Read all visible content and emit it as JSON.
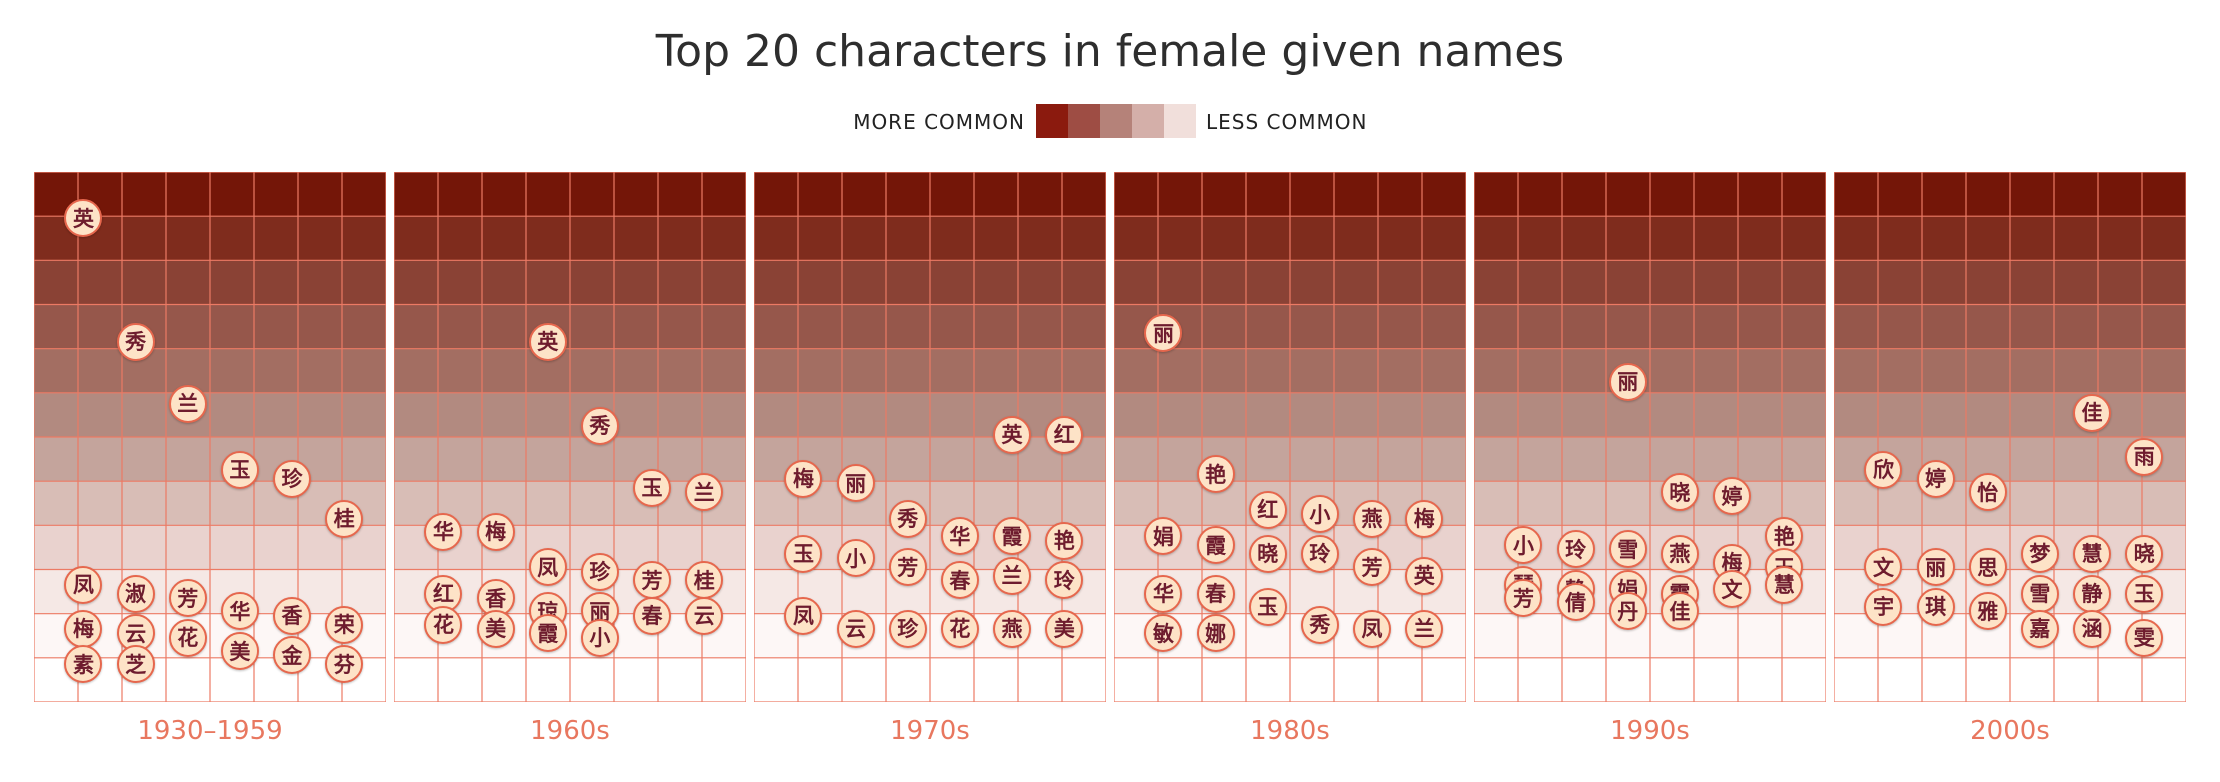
{
  "chart_data": {
    "type": "scatter",
    "title": "Top 20 characters in female given names",
    "legend": {
      "more_label": "MORE COMMON",
      "less_label": "LESS COMMON",
      "colors": [
        "#8b1a0e",
        "#9e4d44",
        "#b58279",
        "#d4afa9",
        "#f1dfdb"
      ],
      "placement": "top-center"
    },
    "band_colors": [
      "#741608",
      "#7f2c1d",
      "#8a4235",
      "#96574b",
      "#a36e62",
      "#b28a80",
      "#c4a49c",
      "#d8bdb6",
      "#e9d2ce",
      "#f5e8e5",
      "#fdf7f6",
      "#ffffff"
    ],
    "panels": [
      {
        "label": "1930–1959",
        "chars": [
          {
            "c": "英",
            "x": 1,
            "y": 1.0
          },
          {
            "c": "秀",
            "x": 2.2,
            "y": 3.8
          },
          {
            "c": "兰",
            "x": 3.4,
            "y": 5.2
          },
          {
            "c": "玉",
            "x": 4.6,
            "y": 6.7
          },
          {
            "c": "珍",
            "x": 5.8,
            "y": 6.9
          },
          {
            "c": "桂",
            "x": 7,
            "y": 7.8
          },
          {
            "c": "凤",
            "x": 1,
            "y": 9.3
          },
          {
            "c": "淑",
            "x": 2.2,
            "y": 9.5
          },
          {
            "c": "芳",
            "x": 3.4,
            "y": 9.6
          },
          {
            "c": "梅",
            "x": 1,
            "y": 10.3
          },
          {
            "c": "云",
            "x": 2.2,
            "y": 10.4
          },
          {
            "c": "花",
            "x": 3.4,
            "y": 10.5
          },
          {
            "c": "华",
            "x": 4.6,
            "y": 9.9
          },
          {
            "c": "香",
            "x": 5.8,
            "y": 10.0
          },
          {
            "c": "美",
            "x": 4.6,
            "y": 10.8
          },
          {
            "c": "金",
            "x": 5.8,
            "y": 10.9
          },
          {
            "c": "荣",
            "x": 7,
            "y": 10.2
          },
          {
            "c": "素",
            "x": 1,
            "y": 11.1
          },
          {
            "c": "芝",
            "x": 2.2,
            "y": 11.1
          },
          {
            "c": "芬",
            "x": 7,
            "y": 11.1
          }
        ]
      },
      {
        "label": "1960s",
        "chars": [
          {
            "c": "英",
            "x": 3.4,
            "y": 3.8
          },
          {
            "c": "秀",
            "x": 4.6,
            "y": 5.7
          },
          {
            "c": "玉",
            "x": 5.8,
            "y": 7.1
          },
          {
            "c": "兰",
            "x": 7,
            "y": 7.2
          },
          {
            "c": "华",
            "x": 1,
            "y": 8.1
          },
          {
            "c": "梅",
            "x": 2.2,
            "y": 8.1
          },
          {
            "c": "凤",
            "x": 3.4,
            "y": 8.9
          },
          {
            "c": "珍",
            "x": 4.6,
            "y": 9.0
          },
          {
            "c": "芳",
            "x": 5.8,
            "y": 9.2
          },
          {
            "c": "桂",
            "x": 7,
            "y": 9.2
          },
          {
            "c": "红",
            "x": 1,
            "y": 9.5
          },
          {
            "c": "香",
            "x": 2.2,
            "y": 9.6
          },
          {
            "c": "琼",
            "x": 3.4,
            "y": 9.9
          },
          {
            "c": "丽",
            "x": 4.6,
            "y": 9.9
          },
          {
            "c": "花",
            "x": 1,
            "y": 10.2
          },
          {
            "c": "美",
            "x": 2.2,
            "y": 10.3
          },
          {
            "c": "霞",
            "x": 3.4,
            "y": 10.4
          },
          {
            "c": "小",
            "x": 4.6,
            "y": 10.5
          },
          {
            "c": "春",
            "x": 5.8,
            "y": 10.0
          },
          {
            "c": "云",
            "x": 7,
            "y": 10.0
          }
        ]
      },
      {
        "label": "1970s",
        "chars": [
          {
            "c": "英",
            "x": 5.8,
            "y": 5.9
          },
          {
            "c": "红",
            "x": 7,
            "y": 5.9
          },
          {
            "c": "梅",
            "x": 1,
            "y": 6.9
          },
          {
            "c": "丽",
            "x": 2.2,
            "y": 7.0
          },
          {
            "c": "秀",
            "x": 3.4,
            "y": 7.8
          },
          {
            "c": "华",
            "x": 4.6,
            "y": 8.2
          },
          {
            "c": "霞",
            "x": 5.8,
            "y": 8.2
          },
          {
            "c": "艳",
            "x": 7,
            "y": 8.3
          },
          {
            "c": "玉",
            "x": 1,
            "y": 8.6
          },
          {
            "c": "小",
            "x": 2.2,
            "y": 8.7
          },
          {
            "c": "芳",
            "x": 3.4,
            "y": 8.9
          },
          {
            "c": "春",
            "x": 4.6,
            "y": 9.2
          },
          {
            "c": "兰",
            "x": 5.8,
            "y": 9.1
          },
          {
            "c": "玲",
            "x": 7,
            "y": 9.2
          },
          {
            "c": "凤",
            "x": 1,
            "y": 10.0
          },
          {
            "c": "云",
            "x": 2.2,
            "y": 10.3
          },
          {
            "c": "珍",
            "x": 3.4,
            "y": 10.3
          },
          {
            "c": "花",
            "x": 4.6,
            "y": 10.3
          },
          {
            "c": "燕",
            "x": 5.8,
            "y": 10.3
          },
          {
            "c": "美",
            "x": 7,
            "y": 10.3
          }
        ]
      },
      {
        "label": "1980s",
        "chars": [
          {
            "c": "丽",
            "x": 1,
            "y": 3.6
          },
          {
            "c": "艳",
            "x": 2.2,
            "y": 6.8
          },
          {
            "c": "红",
            "x": 3.4,
            "y": 7.6
          },
          {
            "c": "小",
            "x": 4.6,
            "y": 7.7
          },
          {
            "c": "燕",
            "x": 5.8,
            "y": 7.8
          },
          {
            "c": "梅",
            "x": 7,
            "y": 7.8
          },
          {
            "c": "娟",
            "x": 1,
            "y": 8.2
          },
          {
            "c": "霞",
            "x": 2.2,
            "y": 8.4
          },
          {
            "c": "晓",
            "x": 3.4,
            "y": 8.6
          },
          {
            "c": "玲",
            "x": 4.6,
            "y": 8.6
          },
          {
            "c": "芳",
            "x": 5.8,
            "y": 8.9
          },
          {
            "c": "英",
            "x": 7,
            "y": 9.1
          },
          {
            "c": "华",
            "x": 1,
            "y": 9.5
          },
          {
            "c": "春",
            "x": 2.2,
            "y": 9.5
          },
          {
            "c": "玉",
            "x": 3.4,
            "y": 9.8
          },
          {
            "c": "秀",
            "x": 4.6,
            "y": 10.2
          },
          {
            "c": "凤",
            "x": 5.8,
            "y": 10.3
          },
          {
            "c": "兰",
            "x": 7,
            "y": 10.3
          },
          {
            "c": "敏",
            "x": 1,
            "y": 10.4
          },
          {
            "c": "娜",
            "x": 2.2,
            "y": 10.4
          }
        ]
      },
      {
        "label": "1990s",
        "chars": [
          {
            "c": "丽",
            "x": 3.4,
            "y": 4.7
          },
          {
            "c": "晓",
            "x": 4.6,
            "y": 7.2
          },
          {
            "c": "婷",
            "x": 5.8,
            "y": 7.3
          },
          {
            "c": "艳",
            "x": 7,
            "y": 8.2
          },
          {
            "c": "小",
            "x": 1,
            "y": 8.4
          },
          {
            "c": "玲",
            "x": 2.2,
            "y": 8.5
          },
          {
            "c": "雪",
            "x": 3.4,
            "y": 8.5
          },
          {
            "c": "燕",
            "x": 4.6,
            "y": 8.6
          },
          {
            "c": "梅",
            "x": 5.8,
            "y": 8.8
          },
          {
            "c": "玉",
            "x": 7,
            "y": 8.9
          },
          {
            "c": "琴",
            "x": 1,
            "y": 9.3
          },
          {
            "c": "静",
            "x": 2.2,
            "y": 9.4
          },
          {
            "c": "娟",
            "x": 3.4,
            "y": 9.4
          },
          {
            "c": "霞",
            "x": 4.6,
            "y": 9.5
          },
          {
            "c": "文",
            "x": 5.8,
            "y": 9.4
          },
          {
            "c": "慧",
            "x": 7,
            "y": 9.3
          },
          {
            "c": "芳",
            "x": 1,
            "y": 9.6
          },
          {
            "c": "倩",
            "x": 2.2,
            "y": 9.7
          },
          {
            "c": "丹",
            "x": 3.4,
            "y": 9.9
          },
          {
            "c": "佳",
            "x": 4.6,
            "y": 9.9
          }
        ]
      },
      {
        "label": "2000s",
        "chars": [
          {
            "c": "佳",
            "x": 5.8,
            "y": 5.4
          },
          {
            "c": "雨",
            "x": 7,
            "y": 6.4
          },
          {
            "c": "欣",
            "x": 1,
            "y": 6.7
          },
          {
            "c": "婷",
            "x": 2.2,
            "y": 6.9
          },
          {
            "c": "怡",
            "x": 3.4,
            "y": 7.2
          },
          {
            "c": "梦",
            "x": 4.6,
            "y": 8.6
          },
          {
            "c": "慧",
            "x": 5.8,
            "y": 8.6
          },
          {
            "c": "晓",
            "x": 7,
            "y": 8.6
          },
          {
            "c": "文",
            "x": 1,
            "y": 8.9
          },
          {
            "c": "丽",
            "x": 2.2,
            "y": 8.9
          },
          {
            "c": "思",
            "x": 3.4,
            "y": 8.9
          },
          {
            "c": "雪",
            "x": 4.6,
            "y": 9.5
          },
          {
            "c": "静",
            "x": 5.8,
            "y": 9.5
          },
          {
            "c": "玉",
            "x": 7,
            "y": 9.5
          },
          {
            "c": "宇",
            "x": 1,
            "y": 9.8
          },
          {
            "c": "琪",
            "x": 2.2,
            "y": 9.8
          },
          {
            "c": "雅",
            "x": 3.4,
            "y": 9.9
          },
          {
            "c": "嘉",
            "x": 4.6,
            "y": 10.3
          },
          {
            "c": "涵",
            "x": 5.8,
            "y": 10.3
          },
          {
            "c": "雯",
            "x": 7,
            "y": 10.5
          }
        ]
      }
    ]
  }
}
